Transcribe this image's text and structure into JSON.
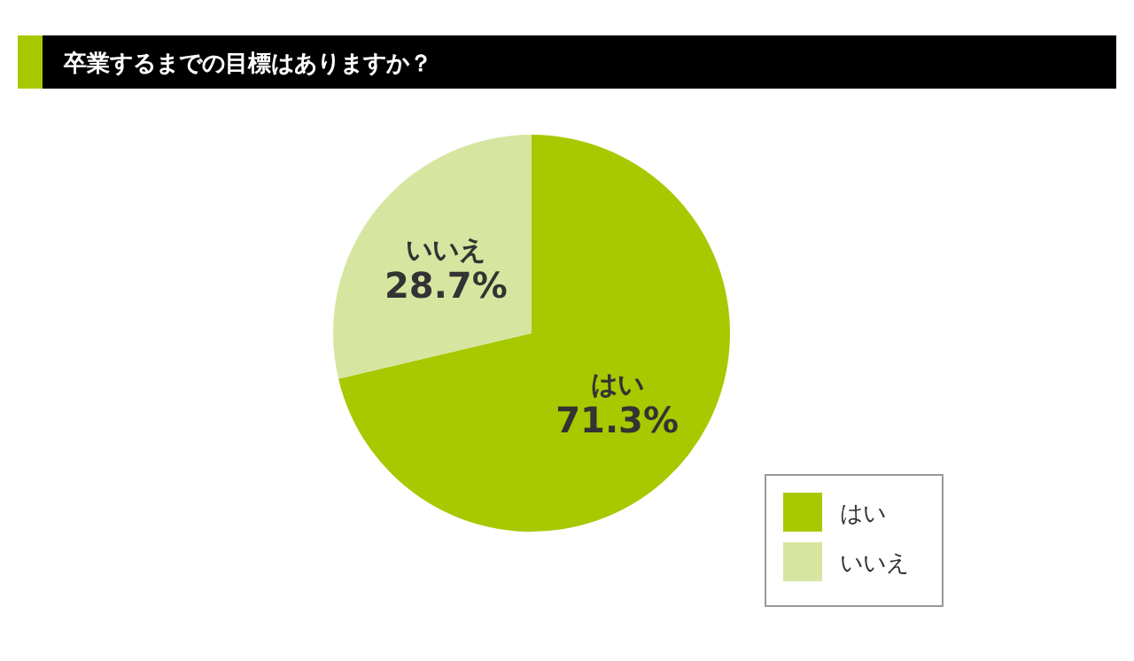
{
  "chart_data": {
    "type": "pie",
    "title": "卒業するまでの目標はありますか？",
    "categories": [
      "はい",
      "いいえ"
    ],
    "values": [
      71.3,
      28.7
    ],
    "colors": [
      "#a8c800",
      "#d6e6a0"
    ],
    "value_labels": [
      "71.3%",
      "28.7%"
    ],
    "legend": "bottom right"
  }
}
